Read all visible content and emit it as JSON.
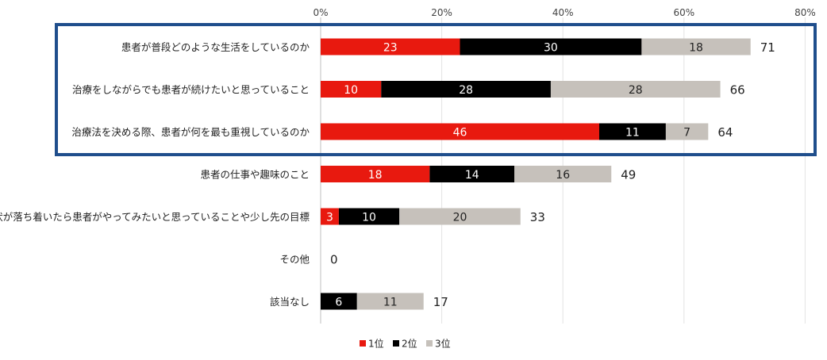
{
  "chart_data": {
    "type": "bar",
    "orientation": "horizontal",
    "stacked": true,
    "categories": [
      "患者が普段どのような生活をしているのか",
      "治療をしながらでも患者が続けたいと思っていること",
      "治療法を決める際、患者が何を最も重視しているのか",
      "患者の仕事や趣味のこと",
      "症状が落ち着いたら患者がやってみたいと思っていることや少し先の目標",
      "その他",
      "該当なし"
    ],
    "series": [
      {
        "name": "1位",
        "color": "#e8190f",
        "values": [
          23,
          10,
          46,
          18,
          3,
          0,
          0
        ]
      },
      {
        "name": "2位",
        "color": "#000000",
        "values": [
          30,
          28,
          11,
          14,
          10,
          0,
          6
        ]
      },
      {
        "name": "3位",
        "color": "#c6c1bb",
        "values": [
          18,
          28,
          7,
          16,
          20,
          0,
          11
        ]
      }
    ],
    "totals": [
      71,
      66,
      64,
      49,
      33,
      0,
      17
    ],
    "x_ticks": [
      "0%",
      "20%",
      "40%",
      "60%",
      "80%"
    ],
    "xlim": [
      0,
      80
    ],
    "grid": true,
    "legend_position": "bottom",
    "highlight_box": {
      "rows": [
        0,
        1,
        2
      ],
      "color": "#1f4e8c"
    }
  }
}
